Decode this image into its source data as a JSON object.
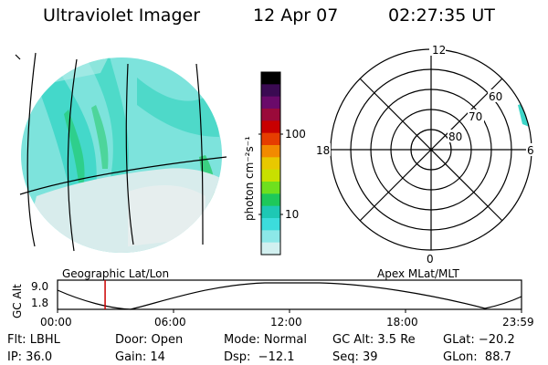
{
  "header": {
    "title": "Ultraviolet Imager",
    "date": "12 Apr 07",
    "time": "02:27:35 UT"
  },
  "geo_panel": {
    "label": "Geographic Lat/Lon"
  },
  "apex_panel": {
    "label": "Apex MLat/MLT",
    "mlt_labels": {
      "top": "12",
      "left": "18",
      "right": "6",
      "bottom": "0"
    },
    "mlat_labels": [
      "60",
      "70",
      "80"
    ]
  },
  "colorbar": {
    "unit": "photon cm⁻²s⁻¹",
    "tick_labels": [
      "100",
      "10"
    ],
    "colors": [
      "#000000",
      "#3a0a52",
      "#6a0a6a",
      "#9a0a3a",
      "#c80000",
      "#e63d00",
      "#f28a00",
      "#e8c800",
      "#c8e000",
      "#6ee01e",
      "#1ec85a",
      "#1ec8b4",
      "#3cdcdc",
      "#8ce8e8",
      "#d2f0f0"
    ]
  },
  "timeline": {
    "ylabel": "GC Alt",
    "y_ticks": [
      "9.0",
      "1.8"
    ],
    "x_ticks": [
      "00:00",
      "06:00",
      "12:00",
      "18:00",
      "23:59"
    ],
    "current_marker_hours": 2.46
  },
  "status": {
    "filter": "Flt: LBHL",
    "ip": "IP: 36.0",
    "door": "Door: Open",
    "gain": "Gain: 14",
    "mode": "Mode: Normal",
    "dsp": "Dsp:  −12.1",
    "gc_alt": "GC Alt: 3.5 Re",
    "seq": "Seq: 39",
    "glat": "GLat: −20.2",
    "glon": "GLon:  88.7"
  }
}
